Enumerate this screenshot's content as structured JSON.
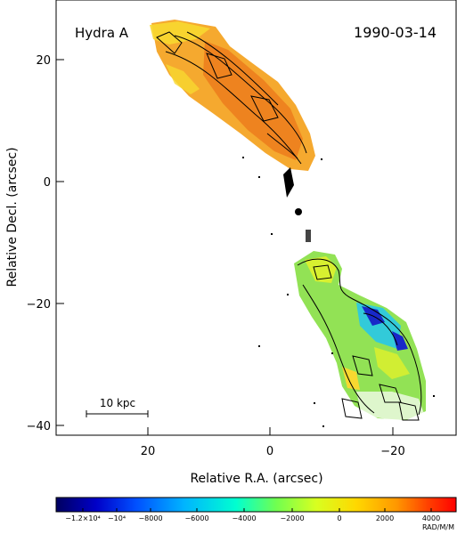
{
  "source_label": "Hydra A",
  "date_label": "1990-03-14",
  "axes": {
    "xlabel": "Relative R.A. (arcsec)",
    "ylabel": "Relative Decl. (arcsec)",
    "x_ticks": [
      "20",
      "0",
      "−20"
    ],
    "y_ticks": [
      "20",
      "0",
      "−20",
      "−40"
    ]
  },
  "scale_bar": {
    "label": "10 kpc"
  },
  "colorbar": {
    "tick_labels": [
      "−1.2×10⁴",
      "−10⁴",
      "−8000",
      "−6000",
      "−4000",
      "−2000",
      "0",
      "2000",
      "4000"
    ],
    "unit": "RAD/M/M",
    "colors": [
      "#000060",
      "#0000c8",
      "#0050ff",
      "#00b4ff",
      "#00ffd0",
      "#70ff50",
      "#d8ff20",
      "#ffd800",
      "#ff9800",
      "#ff4000",
      "#ff0000"
    ]
  },
  "colors": {
    "north_lobe": "#f4a424",
    "north_lobe_core": "#ec7c1c",
    "north_lobe_edge": "#f8d830",
    "south_lobe_green": "#8ce04c",
    "south_lobe_yellow": "#d8f030",
    "south_lobe_cyan": "#28c8e8",
    "south_lobe_blue": "#1828c8"
  }
}
